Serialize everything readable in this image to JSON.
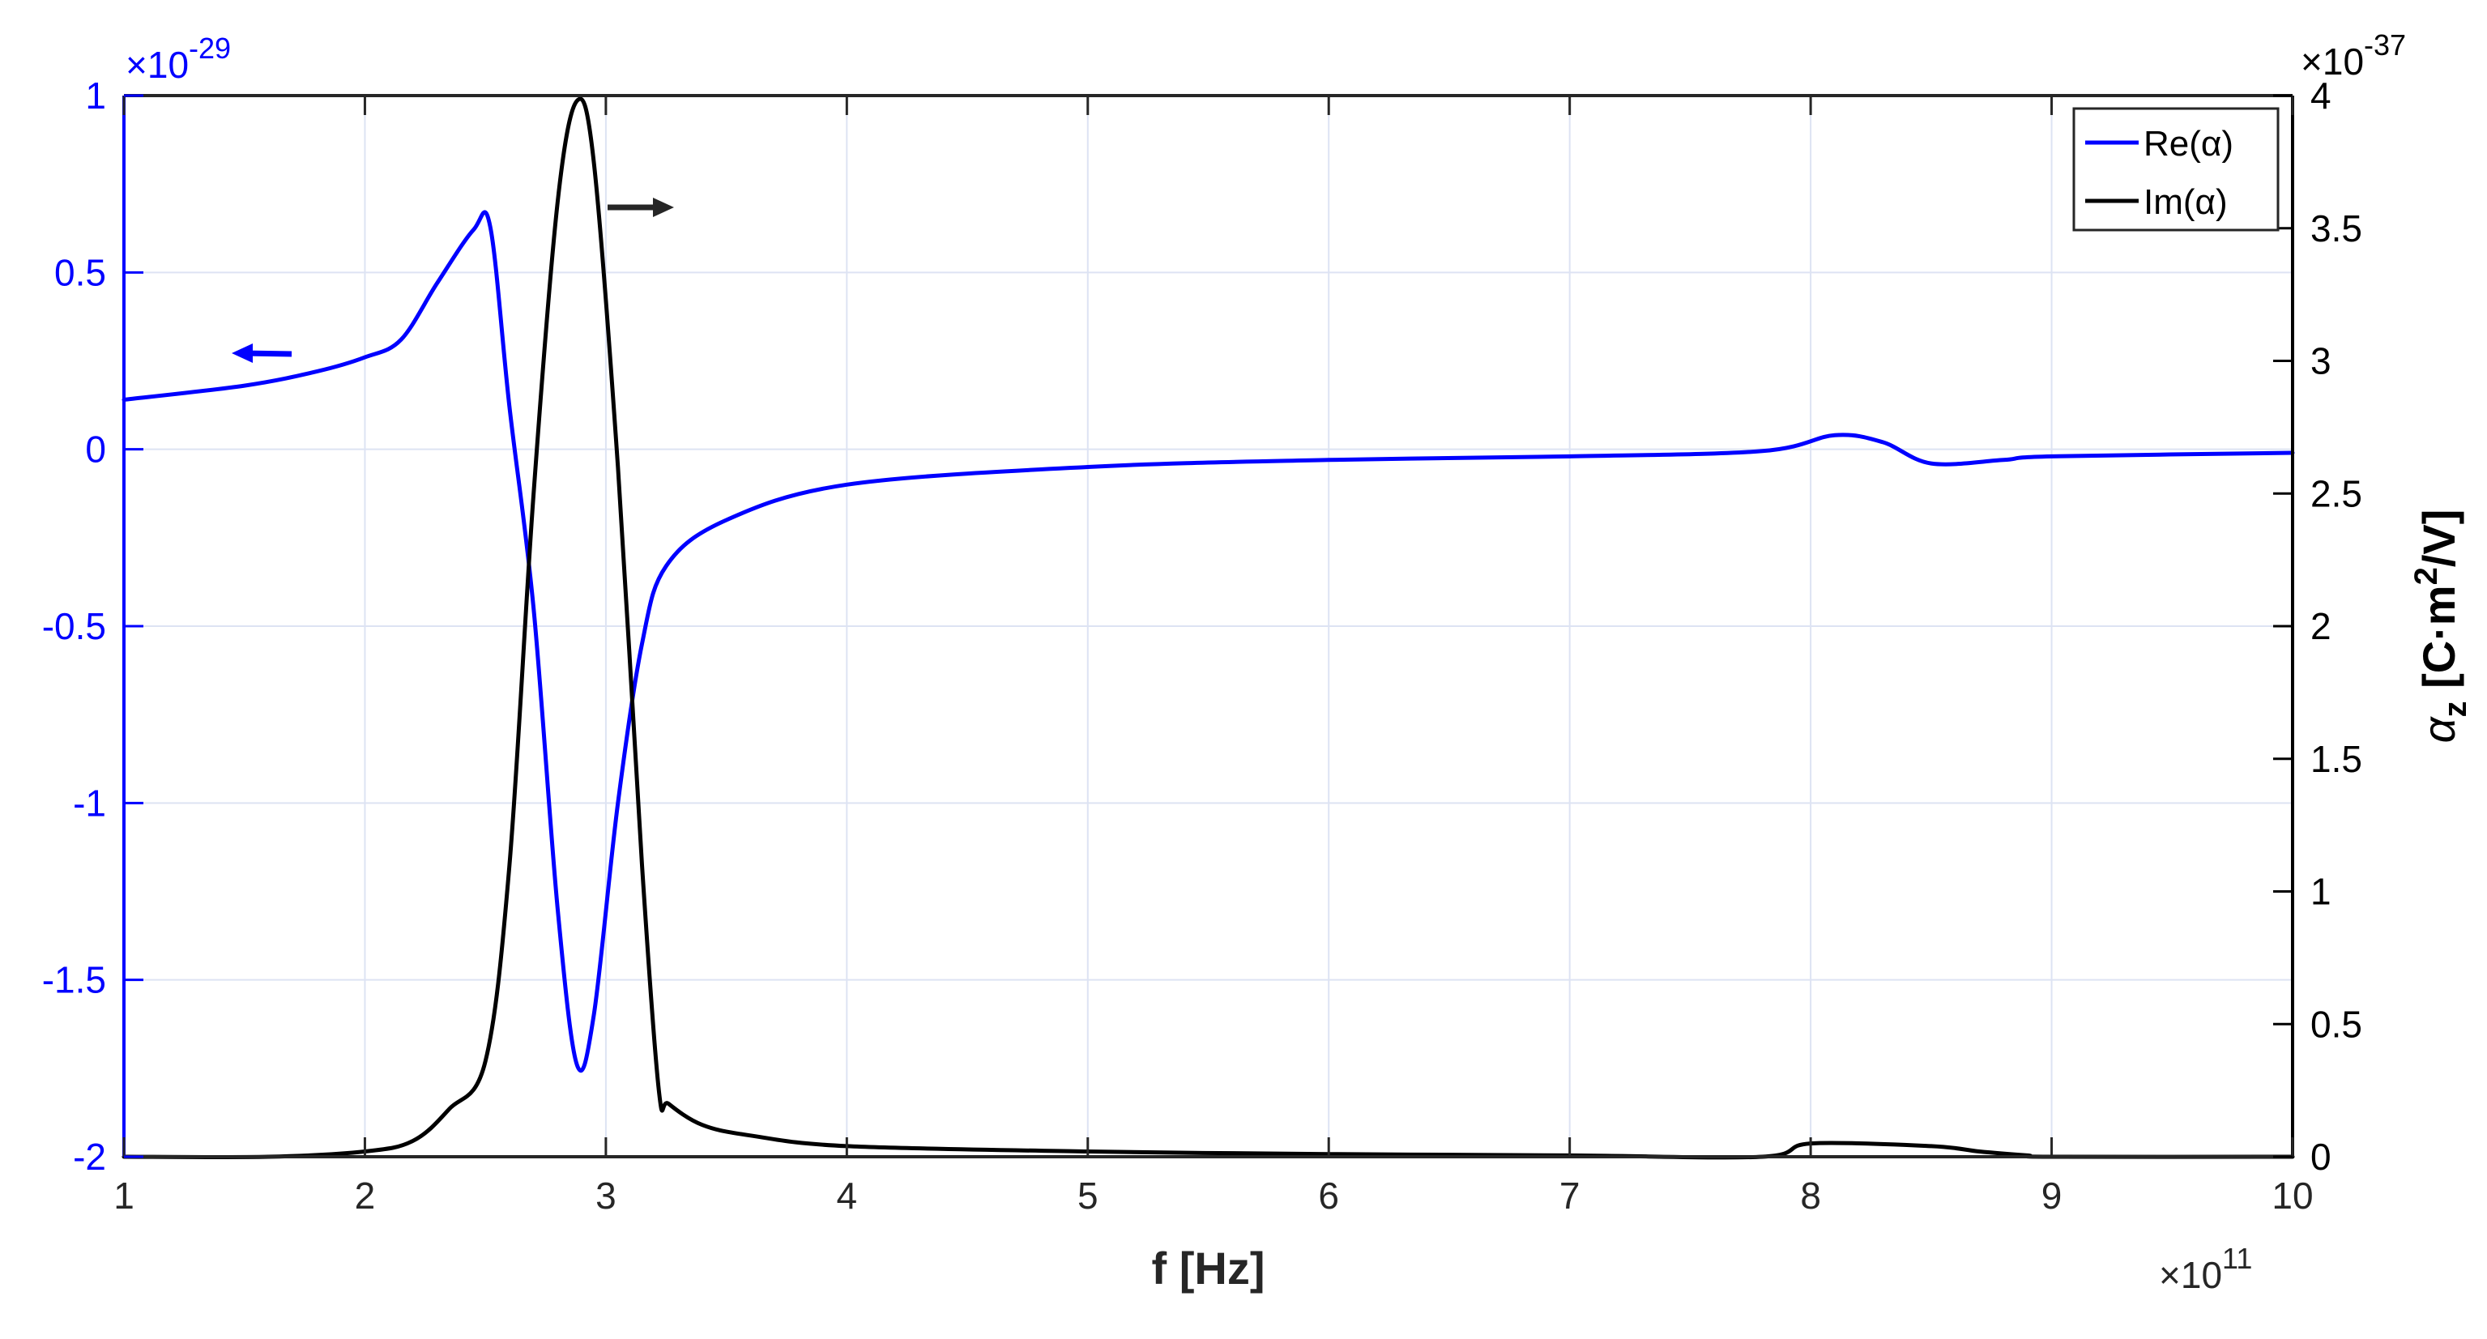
{
  "chart_data": {
    "type": "line",
    "xlabel": "f [Hz]",
    "ylabel_left": "",
    "ylabel_right": {
      "alpha": "α",
      "sub": "z",
      "text1": " [C·m",
      "sup": "2",
      "text2": "/V]"
    },
    "x_multiplier": {
      "base": "×10",
      "exp": "11"
    },
    "yleft_multiplier": {
      "base": "×10",
      "exp": "-29"
    },
    "yright_multiplier": {
      "base": "×10",
      "exp": "-37"
    },
    "xlim": [
      1,
      10
    ],
    "ylim_left": [
      -2,
      1
    ],
    "ylim_right": [
      0,
      4
    ],
    "x_ticks": [
      "1",
      "2",
      "3",
      "4",
      "5",
      "6",
      "7",
      "8",
      "9",
      "10"
    ],
    "yleft_ticks": [
      "-2",
      "-1.5",
      "-1",
      "-0.5",
      "0",
      "0.5",
      "1"
    ],
    "yright_ticks": [
      "0",
      "0.5",
      "1",
      "1.5",
      "2",
      "2.5",
      "3",
      "3.5",
      "4"
    ],
    "grid": true,
    "legend_position": "top-right",
    "colors": {
      "left_axis": "#0000ff",
      "right_axis": "#000000",
      "grid": "#dde3f3"
    },
    "series": [
      {
        "name": "Re(α)",
        "axis": "left",
        "color": "#0000ff",
        "x": [
          1.0,
          1.5,
          1.8,
          2.0,
          2.15,
          2.3,
          2.45,
          2.52,
          2.6,
          2.7,
          2.8,
          2.88,
          2.95,
          3.05,
          3.15,
          3.25,
          3.5,
          4.0,
          5.0,
          6.0,
          7.0,
          7.8,
          8.1,
          8.3,
          8.5,
          8.8,
          9.0,
          10.0
        ],
        "values": [
          0.14,
          0.18,
          0.22,
          0.26,
          0.31,
          0.47,
          0.62,
          0.63,
          0.12,
          -0.45,
          -1.3,
          -1.74,
          -1.6,
          -1.0,
          -0.55,
          -0.33,
          -0.2,
          -0.1,
          -0.05,
          -0.03,
          -0.02,
          -0.005,
          0.04,
          0.02,
          -0.04,
          -0.03,
          -0.02,
          -0.01
        ]
      },
      {
        "name": "Im(α)",
        "axis": "right",
        "color": "#000000",
        "x": [
          1.0,
          1.6,
          2.0,
          2.2,
          2.35,
          2.5,
          2.6,
          2.7,
          2.8,
          2.88,
          2.95,
          3.05,
          3.15,
          3.22,
          3.26,
          3.4,
          3.6,
          4.0,
          5.0,
          6.0,
          7.0,
          7.8,
          8.0,
          8.5,
          8.7,
          8.9,
          9.0,
          10.0
        ],
        "values": [
          0.0,
          0.0,
          0.02,
          0.06,
          0.18,
          0.36,
          1.1,
          2.5,
          3.6,
          3.98,
          3.75,
          2.6,
          1.1,
          0.25,
          0.2,
          0.12,
          0.08,
          0.04,
          0.02,
          0.01,
          0.005,
          0.0,
          0.05,
          0.04,
          0.02,
          0.005,
          0.0,
          0.0
        ]
      }
    ]
  }
}
